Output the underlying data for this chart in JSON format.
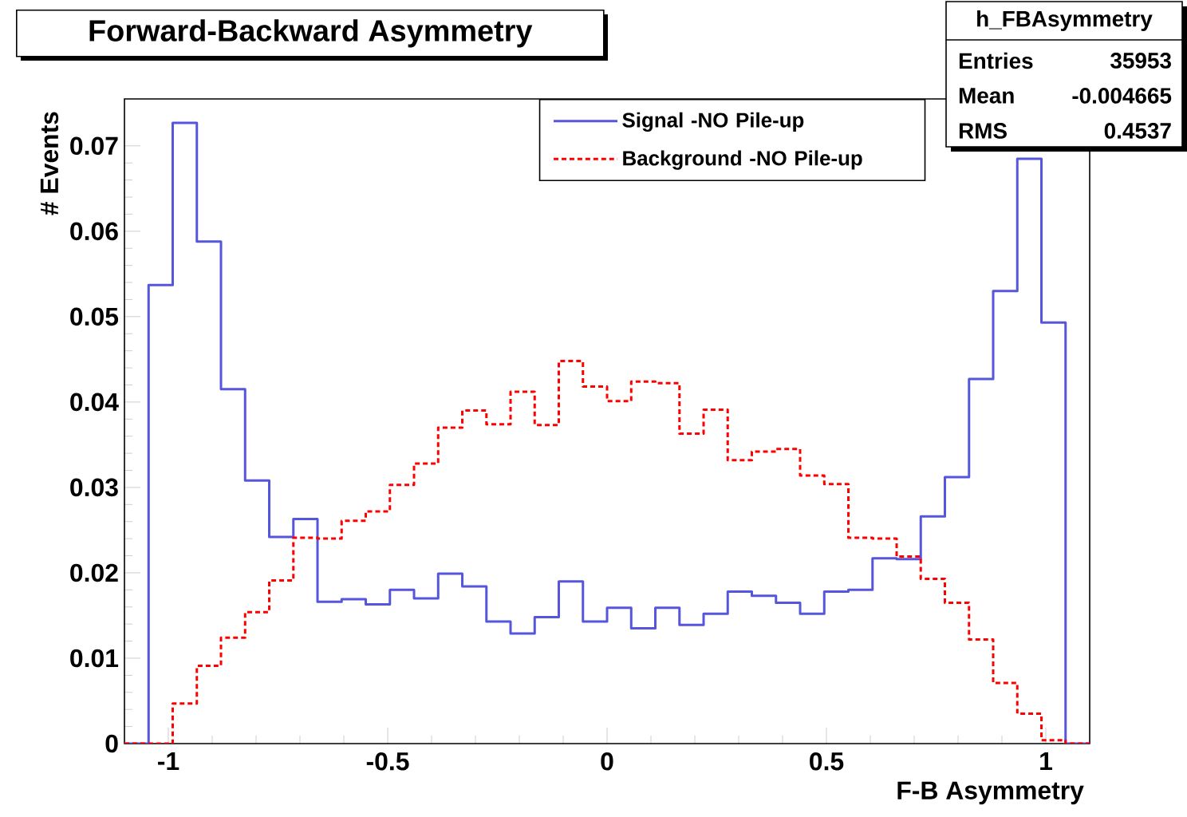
{
  "chart_data": {
    "type": "histogram",
    "title": "Forward-Backward Asymmetry",
    "xlabel": "F-B Asymmetry",
    "ylabel": "# Events",
    "bins": [
      -1.1,
      -1.045,
      -0.99,
      -0.935,
      -0.88,
      -0.825,
      -0.77,
      -0.715,
      -0.66,
      -0.605,
      -0.55,
      -0.495,
      -0.44,
      -0.385,
      -0.33,
      -0.275,
      -0.22,
      -0.165,
      -0.11,
      -0.055,
      0,
      0.055,
      0.11,
      0.165,
      0.22,
      0.275,
      0.33,
      0.385,
      0.44,
      0.495,
      0.55,
      0.605,
      0.66,
      0.715,
      0.77,
      0.825,
      0.88,
      0.935,
      0.99,
      1.045,
      1.1
    ],
    "series": [
      {
        "name": "Signal -NO Pile-up",
        "color": "#5555dd",
        "line_style": "solid",
        "values": [
          0,
          0.0537,
          0.0727,
          0.0588,
          0.0415,
          0.0308,
          0.0242,
          0.0263,
          0.0166,
          0.0169,
          0.0163,
          0.018,
          0.017,
          0.0199,
          0.0184,
          0.0143,
          0.0129,
          0.0148,
          0.019,
          0.0143,
          0.0159,
          0.0135,
          0.0159,
          0.0139,
          0.0152,
          0.0178,
          0.0173,
          0.0165,
          0.0152,
          0.0178,
          0.018,
          0.0217,
          0.0216,
          0.0266,
          0.0312,
          0.0427,
          0.053,
          0.0685,
          0.0493,
          0
        ]
      },
      {
        "name": "Background -NO Pile-up",
        "color": "#ff0000",
        "line_style": "dashed",
        "values": [
          0,
          0,
          0.0047,
          0.0091,
          0.0124,
          0.0154,
          0.0191,
          0.0241,
          0.024,
          0.0261,
          0.0272,
          0.0303,
          0.0328,
          0.037,
          0.039,
          0.0374,
          0.0412,
          0.0373,
          0.0448,
          0.0418,
          0.0401,
          0.0424,
          0.0422,
          0.0363,
          0.0391,
          0.0332,
          0.0342,
          0.0345,
          0.0314,
          0.0304,
          0.0241,
          0.024,
          0.0219,
          0.0193,
          0.0165,
          0.0122,
          0.0071,
          0.0035,
          0.0004,
          0
        ]
      }
    ],
    "xlim": [
      -1.1,
      1.1
    ],
    "ylim": [
      0,
      0.0755
    ],
    "xticks": [
      -1,
      -0.5,
      0,
      0.5,
      1
    ],
    "yticks": [
      0,
      0.01,
      0.02,
      0.03,
      0.04,
      0.05,
      0.06,
      0.07
    ],
    "legend": "top right",
    "annotations": [
      "h_FBAsymmetry",
      "Entries",
      "35953",
      "Mean",
      "-0.004665",
      "RMS",
      "0.4537"
    ]
  }
}
